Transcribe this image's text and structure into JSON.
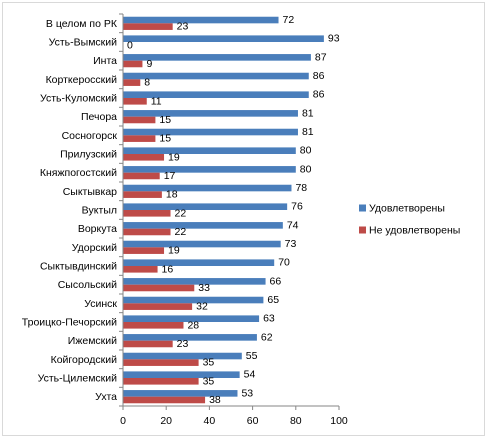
{
  "chart_data": {
    "type": "bar",
    "orientation": "horizontal",
    "categories": [
      "В целом по РК",
      "Усть-Вымский",
      "Инта",
      "Корткеросский",
      "Усть-Куломский",
      "Печора",
      "Сосногорск",
      "Прилузский",
      "Княжпогостский",
      "Сыктывкар",
      "Вуктыл",
      "Воркута",
      "Удорский",
      "Сыктывдинский",
      "Сысольский",
      "Усинск",
      "Троицко-Печорский",
      "Ижемский",
      "Койгородский",
      "Усть-Цилемский",
      "Ухта"
    ],
    "series": [
      {
        "name": "Удовлетворены",
        "color": "#4a7ebb",
        "values": [
          72,
          93,
          87,
          86,
          86,
          81,
          81,
          80,
          80,
          78,
          76,
          74,
          73,
          70,
          66,
          65,
          63,
          62,
          55,
          54,
          53
        ]
      },
      {
        "name": "Не удовлетворены",
        "color": "#be4b48",
        "values": [
          23,
          0,
          9,
          8,
          11,
          15,
          15,
          19,
          17,
          18,
          22,
          22,
          19,
          16,
          33,
          32,
          28,
          23,
          35,
          35,
          38
        ]
      }
    ],
    "xlim": [
      0,
      100
    ],
    "xticks": [
      0,
      20,
      40,
      60,
      80,
      100
    ],
    "grid": false,
    "legend_position": "right",
    "data_labels": true
  }
}
